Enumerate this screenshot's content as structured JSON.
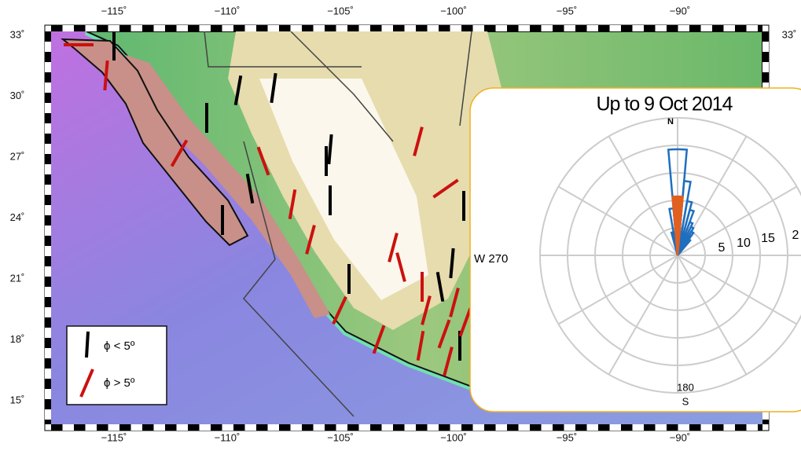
{
  "map": {
    "lon_labels": [
      "−115˚",
      "−110˚",
      "−105˚",
      "−100˚",
      "−95˚",
      "−90˚"
    ],
    "lat_labels": [
      "33˚",
      "30˚",
      "27˚",
      "24˚",
      "21˚",
      "18˚",
      "15˚"
    ],
    "lat_label_right": "33˚",
    "legend": [
      {
        "label": "ϕ < 5º"
      },
      {
        "label": "ϕ > 5º"
      }
    ]
  },
  "inset": {
    "title": "Up to 9 Oct 2014",
    "north": "N",
    "west": "W 270",
    "south_degrees": "180",
    "south": "S",
    "ring_labels": [
      "5",
      "10",
      "15",
      "2"
    ]
  }
}
